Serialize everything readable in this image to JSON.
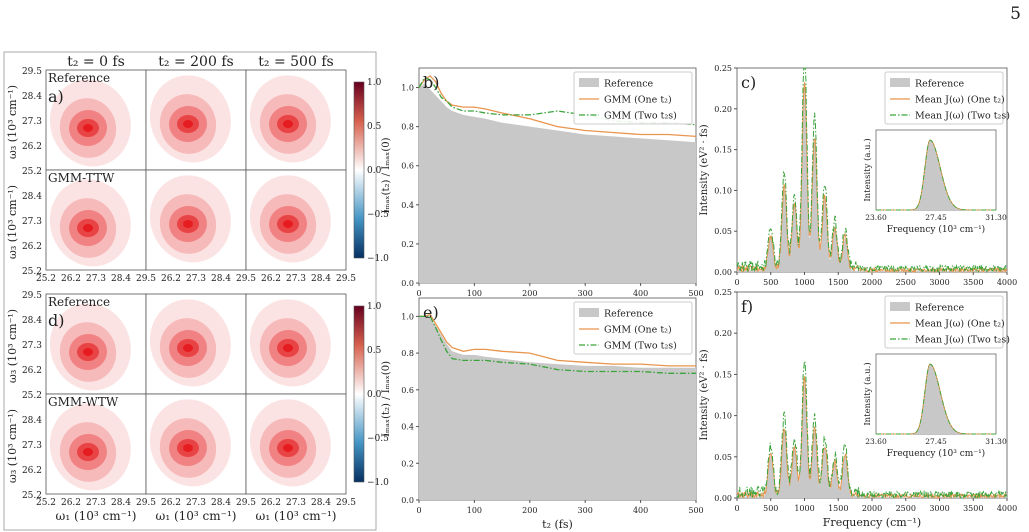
{
  "page_number": "5",
  "col_titles": [
    "t₂ = 0 fs",
    "t₂ = 200 fs",
    "t₂ = 500 fs"
  ],
  "heatmap": {
    "y_ticks": [
      "29.5",
      "28.4",
      "27.3",
      "26.2",
      "25.2"
    ],
    "x_ticks": [
      "25.2",
      "26.2",
      "27.3",
      "28.4",
      "29.5"
    ],
    "ylabel": "ω₃ (10³ cm⁻¹)",
    "xlabel": "ω₁ (10³ cm⁻¹)",
    "colorbar_ticks": [
      "1.0",
      "0.5",
      "0.0",
      "−0.5",
      "−1.0"
    ],
    "groups": [
      {
        "rows": [
          {
            "label": "Reference",
            "panel": "a)"
          },
          {
            "label": "GMM-TTW",
            "panel": ""
          }
        ]
      },
      {
        "rows": [
          {
            "label": "Reference",
            "panel": "d)"
          },
          {
            "label": "GMM-WTW",
            "panel": ""
          }
        ]
      }
    ]
  },
  "chart_data": [
    {
      "type": "line",
      "panel": "b)",
      "xlim": [
        0,
        500
      ],
      "ylim": [
        0,
        1.1
      ],
      "x_ticks": [
        "0",
        "100",
        "200",
        "300",
        "400",
        "500"
      ],
      "y_ticks": [
        "0.0",
        "0.2",
        "0.4",
        "0.6",
        "0.8",
        "1.0"
      ],
      "xlabel": "",
      "ylabel": "Iₘₐₓ(t₂) / Iₘₐₓ(0)",
      "legend": "top-right",
      "x": [
        0,
        10,
        20,
        30,
        40,
        50,
        60,
        80,
        100,
        120,
        150,
        200,
        250,
        300,
        350,
        400,
        450,
        500
      ],
      "series": [
        {
          "name": "Reference",
          "kind": "area",
          "color": "#c8c8c8",
          "values": [
            1.0,
            1.02,
            0.99,
            0.96,
            0.93,
            0.9,
            0.88,
            0.86,
            0.85,
            0.84,
            0.82,
            0.8,
            0.78,
            0.76,
            0.75,
            0.74,
            0.73,
            0.72
          ]
        },
        {
          "name": "GMM (One t₂)",
          "kind": "line",
          "color": "#e8954e",
          "values": [
            1.0,
            1.04,
            1.06,
            1.03,
            0.97,
            0.93,
            0.91,
            0.9,
            0.9,
            0.89,
            0.87,
            0.84,
            0.8,
            0.78,
            0.77,
            0.76,
            0.76,
            0.75
          ]
        },
        {
          "name": "GMM (Two t₂s)",
          "kind": "dashdot",
          "color": "#3aa33a",
          "values": [
            1.0,
            1.05,
            1.04,
            1.0,
            0.95,
            0.93,
            0.9,
            0.88,
            0.88,
            0.87,
            0.86,
            0.86,
            0.88,
            0.86,
            0.83,
            0.82,
            0.82,
            0.81
          ]
        }
      ]
    },
    {
      "type": "line",
      "panel": "e)",
      "xlim": [
        0,
        500
      ],
      "ylim": [
        0,
        1.1
      ],
      "x_ticks": [
        "0",
        "100",
        "200",
        "300",
        "400",
        "500"
      ],
      "y_ticks": [
        "0.0",
        "0.2",
        "0.4",
        "0.6",
        "0.8",
        "1.0"
      ],
      "xlabel": "t₂ (fs)",
      "ylabel": "Iₘₐₓ(t₂) / Iₘₐₓ(0)",
      "legend": "top-right",
      "x": [
        0,
        10,
        20,
        30,
        40,
        50,
        60,
        80,
        100,
        120,
        150,
        200,
        250,
        300,
        350,
        400,
        450,
        500
      ],
      "series": [
        {
          "name": "Reference",
          "kind": "area",
          "color": "#c8c8c8",
          "values": [
            1.0,
            1.0,
            0.99,
            0.95,
            0.9,
            0.85,
            0.81,
            0.79,
            0.79,
            0.78,
            0.77,
            0.75,
            0.74,
            0.73,
            0.73,
            0.72,
            0.72,
            0.72
          ]
        },
        {
          "name": "GMM (One t₂)",
          "kind": "line",
          "color": "#e8954e",
          "values": [
            1.0,
            1.0,
            1.01,
            0.96,
            0.91,
            0.86,
            0.83,
            0.81,
            0.82,
            0.82,
            0.81,
            0.8,
            0.76,
            0.75,
            0.74,
            0.74,
            0.73,
            0.73
          ]
        },
        {
          "name": "GMM (Two t₂s)",
          "kind": "dashdot",
          "color": "#3aa33a",
          "values": [
            1.0,
            1.0,
            1.0,
            0.94,
            0.87,
            0.81,
            0.77,
            0.76,
            0.76,
            0.76,
            0.75,
            0.74,
            0.71,
            0.7,
            0.7,
            0.7,
            0.69,
            0.69
          ]
        }
      ]
    },
    {
      "type": "line",
      "panel": "c)",
      "xlim": [
        0,
        4000
      ],
      "ylim": [
        0,
        0.25
      ],
      "x_ticks": [
        "0",
        "500",
        "1000",
        "1500",
        "2000",
        "2500",
        "3000",
        "3500",
        "4000"
      ],
      "y_ticks": [
        "0.00",
        "0.05",
        "0.10",
        "0.15",
        "0.20",
        "0.25"
      ],
      "xlabel": "",
      "ylabel": "Intensity (eV² · fs)",
      "legend": "top-right",
      "peaks": [
        {
          "center": 500,
          "height": 0.04
        },
        {
          "center": 700,
          "height": 0.1
        },
        {
          "center": 850,
          "height": 0.08
        },
        {
          "center": 1000,
          "height": 0.23
        },
        {
          "center": 1150,
          "height": 0.16
        },
        {
          "center": 1300,
          "height": 0.09
        },
        {
          "center": 1450,
          "height": 0.05
        },
        {
          "center": 1600,
          "height": 0.04
        }
      ],
      "series": [
        {
          "name": "Reference",
          "kind": "area",
          "color": "#c8c8c8"
        },
        {
          "name": "Mean J(ω) (One t₂)",
          "kind": "line",
          "color": "#e8954e"
        },
        {
          "name": "Mean J(ω) (Two t₂s)",
          "kind": "dashdot",
          "color": "#3aa33a"
        }
      ],
      "inset": {
        "xlabel": "Frequency (10³ cm⁻¹)",
        "ylabel": "Intensity (a.u.)",
        "x_ticks": [
          "23.60",
          "27.45",
          "31.30"
        ]
      }
    },
    {
      "type": "line",
      "panel": "f)",
      "xlim": [
        0,
        4000
      ],
      "ylim": [
        0,
        0.25
      ],
      "x_ticks": [
        "0",
        "500",
        "1000",
        "1500",
        "2000",
        "2500",
        "3000",
        "3500",
        "4000"
      ],
      "y_ticks": [
        "0.00",
        "0.05",
        "0.10",
        "0.15",
        "0.20",
        "0.25"
      ],
      "xlabel": "Frequency (cm⁻¹)",
      "ylabel": "Intensity (eV² · fs)",
      "legend": "top-right",
      "peaks": [
        {
          "center": 500,
          "height": 0.05
        },
        {
          "center": 700,
          "height": 0.08
        },
        {
          "center": 850,
          "height": 0.06
        },
        {
          "center": 1000,
          "height": 0.14
        },
        {
          "center": 1150,
          "height": 0.08
        },
        {
          "center": 1300,
          "height": 0.06
        },
        {
          "center": 1450,
          "height": 0.04
        },
        {
          "center": 1600,
          "height": 0.05
        }
      ],
      "series": [
        {
          "name": "Reference",
          "kind": "area",
          "color": "#c8c8c8"
        },
        {
          "name": "Mean J(ω) (One t₂)",
          "kind": "line",
          "color": "#e8954e"
        },
        {
          "name": "Mean J(ω) (Two t₂s)",
          "kind": "dashdot",
          "color": "#3aa33a"
        }
      ],
      "inset": {
        "xlabel": "Frequency (10³ cm⁻¹)",
        "ylabel": "Intensity (a.u.)",
        "x_ticks": [
          "23.60",
          "27.45",
          "31.30"
        ]
      }
    }
  ]
}
